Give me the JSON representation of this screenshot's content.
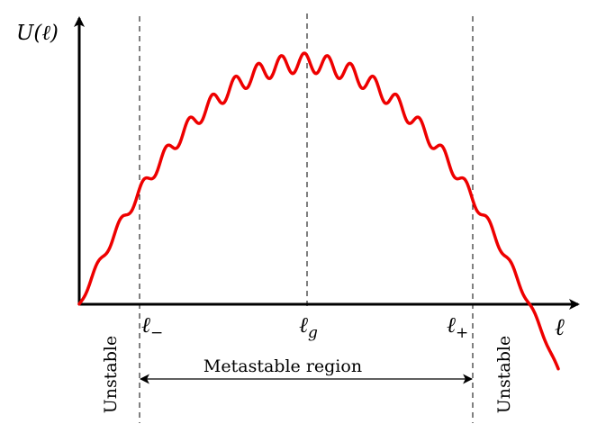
{
  "figure": {
    "y_axis_label": "U(ℓ)",
    "x_axis_label": "ℓ",
    "markers": [
      {
        "id": "l-minus",
        "symbol": "ℓ",
        "subscript": "−"
      },
      {
        "id": "l-g",
        "symbol": "ℓ",
        "subscript": "g"
      },
      {
        "id": "l-plus",
        "symbol": "ℓ",
        "subscript": "+"
      }
    ],
    "region_label": "Metastable region",
    "left_region_label": "Unstable",
    "right_region_label": "Unstable",
    "curve_color": "#ee0000",
    "axis_color": "#000000"
  }
}
